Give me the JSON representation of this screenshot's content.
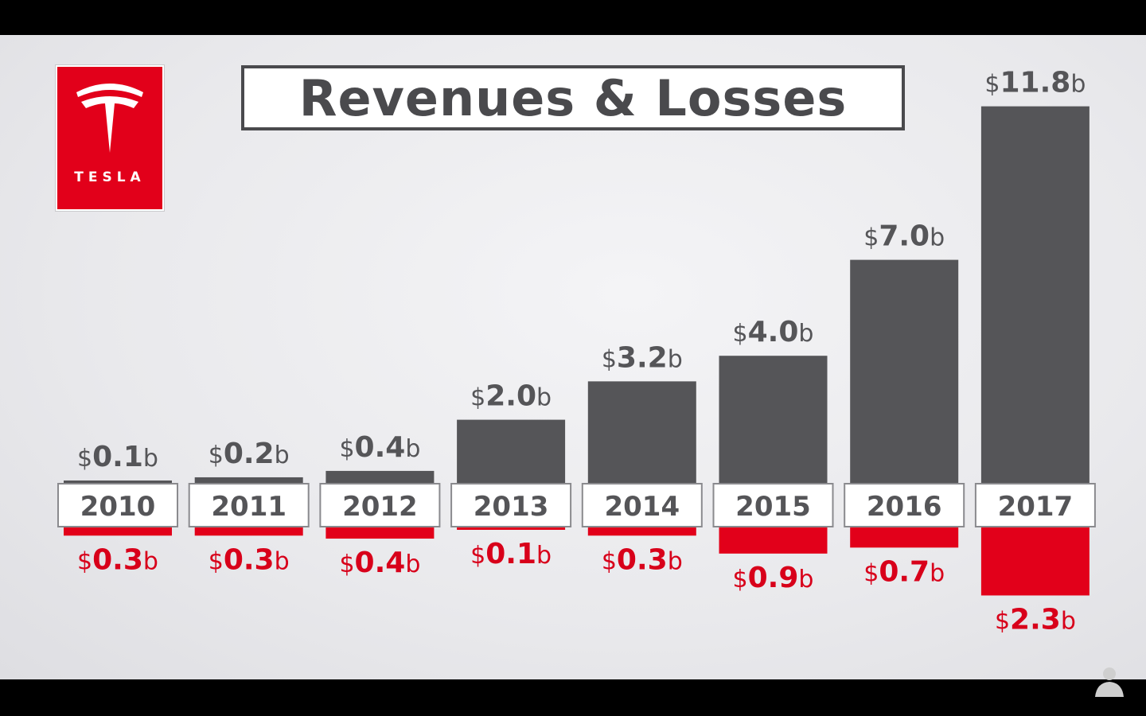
{
  "title": "Revenues & Losses",
  "logo_text": "TESLA",
  "chart_data": {
    "type": "bar",
    "title": "Revenues & Losses",
    "categories": [
      "2010",
      "2011",
      "2012",
      "2013",
      "2014",
      "2015",
      "2016",
      "2017"
    ],
    "series": [
      {
        "role": "revenue",
        "values": [
          0.1,
          0.2,
          0.4,
          2.0,
          3.2,
          4.0,
          7.0,
          11.8
        ],
        "labels": [
          {
            "cur": "$",
            "num": "0.1",
            "unit": "b"
          },
          {
            "cur": "$",
            "num": "0.2",
            "unit": "b"
          },
          {
            "cur": "$",
            "num": "0.4",
            "unit": "b"
          },
          {
            "cur": "$",
            "num": "2.0",
            "unit": "b"
          },
          {
            "cur": "$",
            "num": "3.2",
            "unit": "b"
          },
          {
            "cur": "$",
            "num": "4.0",
            "unit": "b"
          },
          {
            "cur": "$",
            "num": "7.0",
            "unit": "b"
          },
          {
            "cur": "$",
            "num": "11.8",
            "unit": "b"
          }
        ]
      },
      {
        "role": "loss",
        "values": [
          0.3,
          0.3,
          0.4,
          0.1,
          0.3,
          0.9,
          0.7,
          2.3
        ],
        "labels": [
          {
            "cur": "$",
            "num": "0.3",
            "unit": "b"
          },
          {
            "cur": "$",
            "num": "0.3",
            "unit": "b"
          },
          {
            "cur": "$",
            "num": "0.4",
            "unit": "b"
          },
          {
            "cur": "$",
            "num": "0.1",
            "unit": "b"
          },
          {
            "cur": "$",
            "num": "0.3",
            "unit": "b"
          },
          {
            "cur": "$",
            "num": "0.9",
            "unit": "b"
          },
          {
            "cur": "$",
            "num": "0.7",
            "unit": "b"
          },
          {
            "cur": "$",
            "num": "2.3",
            "unit": "b"
          }
        ]
      }
    ],
    "colors": {
      "revenue": "#555558",
      "loss": "#e2001a",
      "revenue_label": "#555558",
      "loss_label": "#d8001a"
    },
    "grid": false,
    "legend": "none"
  }
}
